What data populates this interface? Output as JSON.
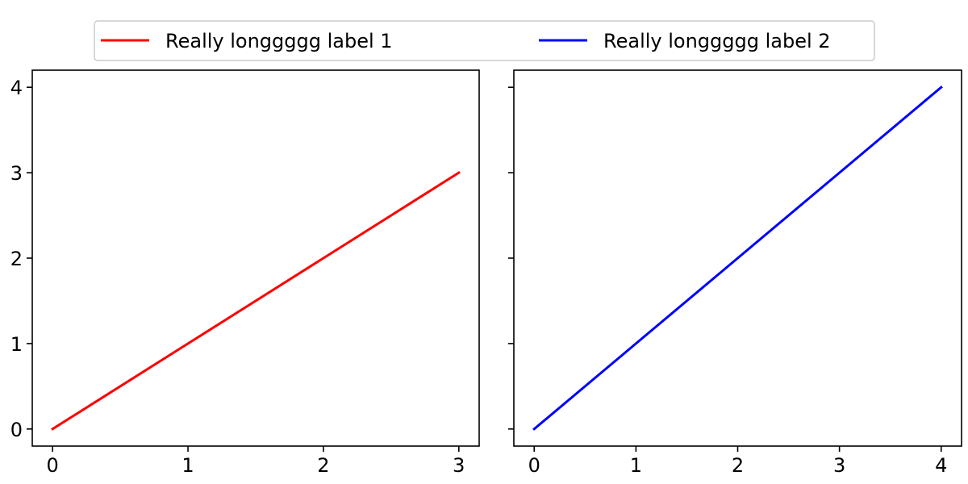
{
  "figure": {
    "legend": {
      "placement": "top-center",
      "entries": [
        {
          "label": "Really longgggg label 1",
          "color": "#ff0000"
        },
        {
          "label": "Really longgggg label 2",
          "color": "#0000ff"
        }
      ]
    },
    "sharey": true
  },
  "chart_data": [
    {
      "type": "line",
      "title": "",
      "xlabel": "",
      "ylabel": "",
      "xlim": [
        -0.15,
        3.15
      ],
      "ylim": [
        -0.2,
        4.2
      ],
      "xticks": [
        0,
        1,
        2,
        3
      ],
      "yticks": [
        0,
        1,
        2,
        3,
        4
      ],
      "grid": false,
      "series": [
        {
          "name": "Really longgggg label 1",
          "color": "#ff0000",
          "x": [
            0,
            1,
            2,
            3
          ],
          "y": [
            0,
            1,
            2,
            3
          ]
        }
      ]
    },
    {
      "type": "line",
      "title": "",
      "xlabel": "",
      "ylabel": "",
      "xlim": [
        -0.2,
        4.2
      ],
      "ylim": [
        -0.2,
        4.2
      ],
      "xticks": [
        0,
        1,
        2,
        3,
        4
      ],
      "yticks": [
        0,
        1,
        2,
        3,
        4
      ],
      "show_ytick_labels": false,
      "grid": false,
      "series": [
        {
          "name": "Really longgggg label 2",
          "color": "#0000ff",
          "x": [
            0,
            1,
            2,
            3,
            4
          ],
          "y": [
            0,
            1,
            2,
            3,
            4
          ]
        }
      ]
    }
  ]
}
